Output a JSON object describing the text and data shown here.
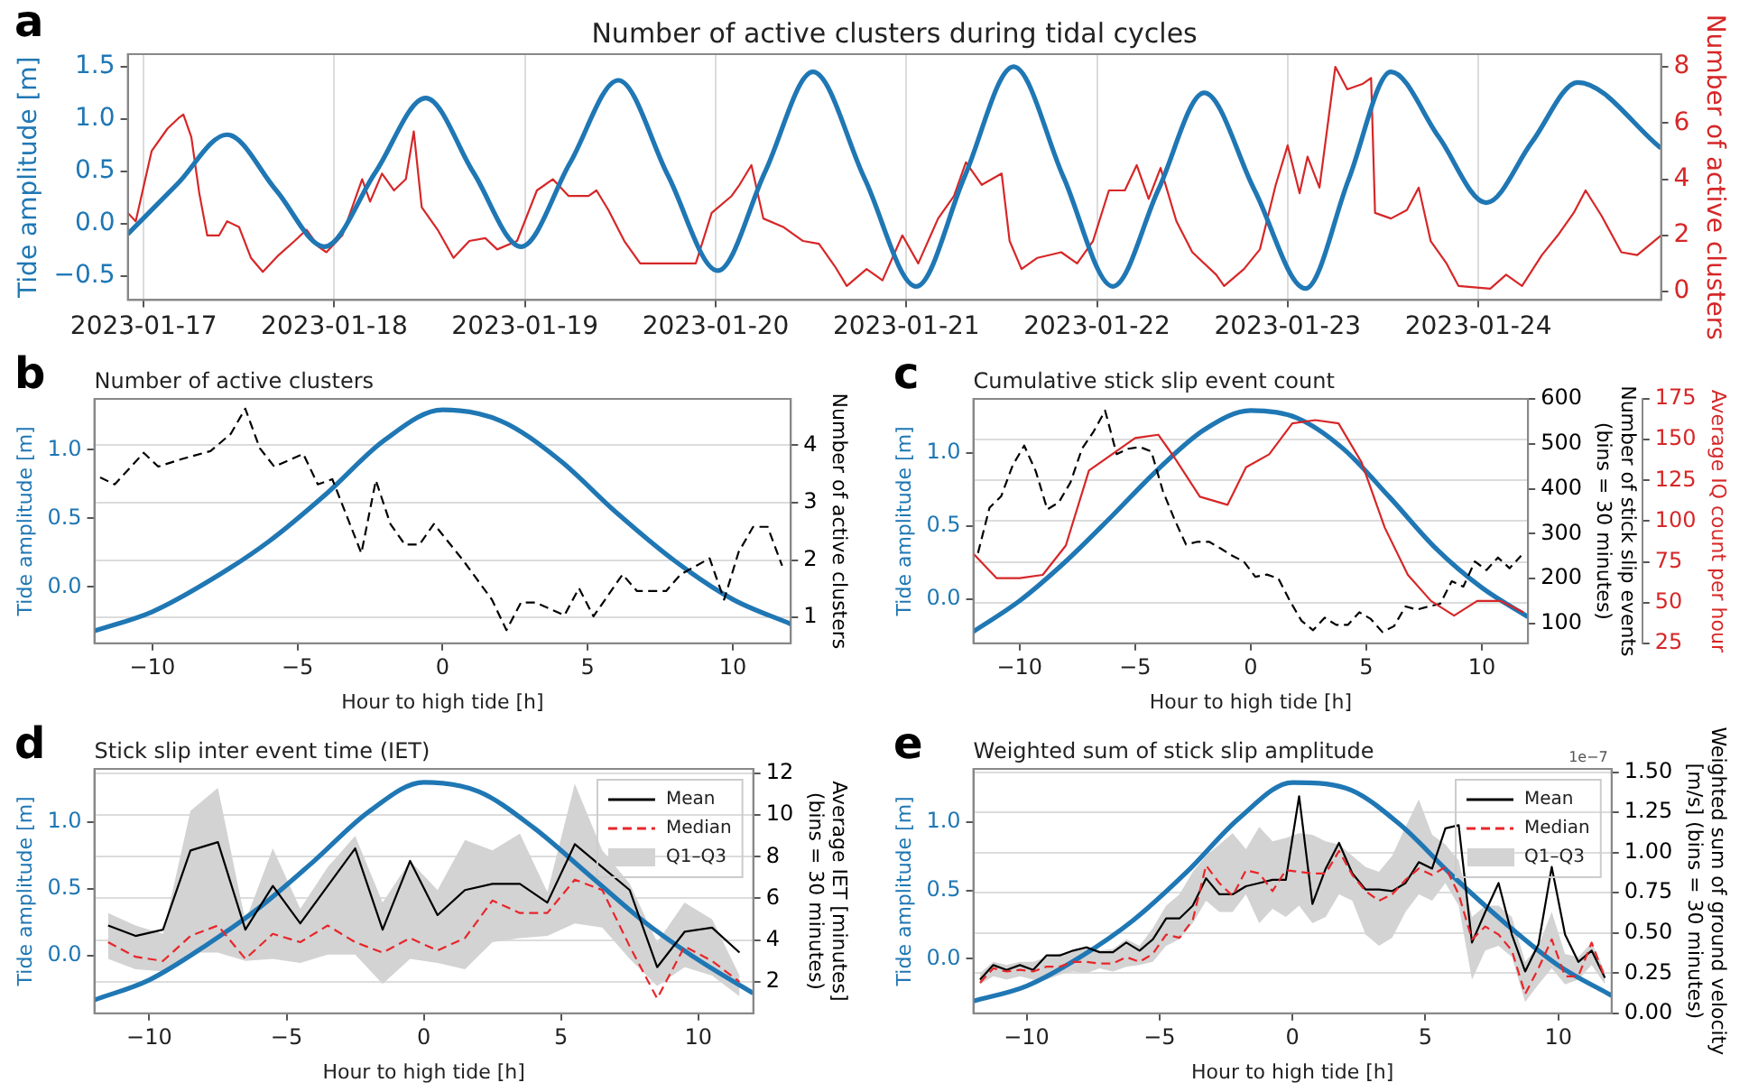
{
  "chart_data": [
    {
      "type": "line",
      "title": "Number of active clusters during tidal cycles",
      "ylabel": "Tide amplitude [m]",
      "y2label": "Number of active clusters",
      "annotations": [
        "a"
      ],
      "grid": "x",
      "xlim": [
        "2023-01-16T22:00",
        "2023-01-24T23:00"
      ],
      "xticks": [
        "2023-01-17",
        "2023-01-18",
        "2023-01-19",
        "2023-01-20",
        "2023-01-21",
        "2023-01-22",
        "2023-01-23",
        "2023-01-24"
      ],
      "ylim": [
        -0.73,
        1.62
      ],
      "yticks": [
        {
          "value": -0.5,
          "label": "−0.5"
        },
        {
          "value": 0,
          "label": "0.0"
        },
        {
          "value": 0.5,
          "label": "0.5"
        },
        {
          "value": 1,
          "label": "1.0"
        },
        {
          "value": 1.5,
          "label": "1.5"
        }
      ],
      "y2lim": [
        -0.3,
        8.45
      ],
      "y2ticks": [
        0,
        2,
        4,
        6,
        8
      ],
      "series": [
        {
          "color": "#d62728",
          "axis": "y2",
          "x": [
            "2023-01-16T22:00",
            "2023-01-16T23:00",
            "2023-01-17T01:00",
            "2023-01-17T03:00",
            "2023-01-17T04:30",
            "2023-01-17T05:00",
            "2023-01-17T06:00",
            "2023-01-17T07:00",
            "2023-01-17T08:00",
            "2023-01-17T09:30",
            "2023-01-17T10:30",
            "2023-01-17T12:00",
            "2023-01-17T13:30",
            "2023-01-17T15:00",
            "2023-01-17T17:00",
            "2023-01-17T19:00",
            "2023-01-17T20:30",
            "2023-01-17T22:00",
            "2023-01-17T23:00",
            "2023-01-18T01:00",
            "2023-01-18T03:30",
            "2023-01-18T04:30",
            "2023-01-18T06:00",
            "2023-01-18T07:30",
            "2023-01-18T09:00",
            "2023-01-18T10:00",
            "2023-01-18T11:00",
            "2023-01-18T13:00",
            "2023-01-18T15:00",
            "2023-01-18T17:00",
            "2023-01-18T19:00",
            "2023-01-18T20:30",
            "2023-01-18T23:00",
            "2023-01-19T01:30",
            "2023-01-19T03:30",
            "2023-01-19T05:30",
            "2023-01-19T08:00",
            "2023-01-19T09:00",
            "2023-01-19T10:30",
            "2023-01-19T12:30",
            "2023-01-19T14:30",
            "2023-01-19T19:00",
            "2023-01-19T21:30",
            "2023-01-19T23:30",
            "2023-01-20T02:00",
            "2023-01-20T03:00",
            "2023-01-20T04:30",
            "2023-01-20T06:00",
            "2023-01-20T08:30",
            "2023-01-20T11:00",
            "2023-01-20T13:00",
            "2023-01-20T15:00",
            "2023-01-20T16:30",
            "2023-01-20T19:00",
            "2023-01-20T21:00",
            "2023-01-20T23:30",
            "2023-01-21T01:30",
            "2023-01-21T04:00",
            "2023-01-21T06:00",
            "2023-01-21T07:30",
            "2023-01-21T09:30",
            "2023-01-21T12:00",
            "2023-01-21T13:00",
            "2023-01-21T14:30",
            "2023-01-21T16:30",
            "2023-01-21T19:30",
            "2023-01-21T21:30",
            "2023-01-21T23:30",
            "2023-01-22T01:30",
            "2023-01-22T03:30",
            "2023-01-22T05:00",
            "2023-01-22T06:30",
            "2023-01-22T08:00",
            "2023-01-22T10:00",
            "2023-01-22T12:00",
            "2023-01-22T15:00",
            "2023-01-22T16:00",
            "2023-01-22T18:30",
            "2023-01-22T20:30",
            "2023-01-22T22:30",
            "2023-01-23T00:00",
            "2023-01-23T01:30",
            "2023-01-23T02:30",
            "2023-01-23T04:00",
            "2023-01-23T06:00",
            "2023-01-23T07:30",
            "2023-01-23T09:30",
            "2023-01-23T10:30",
            "2023-01-23T11:00",
            "2023-01-23T13:00",
            "2023-01-23T15:00",
            "2023-01-23T16:30",
            "2023-01-23T18:00",
            "2023-01-23T20:00",
            "2023-01-23T21:30",
            "2023-01-24T01:30",
            "2023-01-24T03:30",
            "2023-01-24T05:30",
            "2023-01-24T08:00",
            "2023-01-24T10:00",
            "2023-01-24T12:00",
            "2023-01-24T13:30",
            "2023-01-24T15:30",
            "2023-01-24T18:00",
            "2023-01-24T20:00",
            "2023-01-24T23:00"
          ],
          "values": [
            2.8,
            2.5,
            5.0,
            5.8,
            6.2,
            6.3,
            5.5,
            3.5,
            2.0,
            2.0,
            2.5,
            2.3,
            1.2,
            0.7,
            1.3,
            1.8,
            2.2,
            1.6,
            1.4,
            2.0,
            4.0,
            3.2,
            4.2,
            3.6,
            4.0,
            5.7,
            3.0,
            2.2,
            1.2,
            1.8,
            1.9,
            1.5,
            1.8,
            3.6,
            4.0,
            3.4,
            3.4,
            3.6,
            2.9,
            1.8,
            1.0,
            1.0,
            1.0,
            2.8,
            3.4,
            3.8,
            4.5,
            2.6,
            2.3,
            1.8,
            1.7,
            0.9,
            0.2,
            0.8,
            0.4,
            2.0,
            1.0,
            2.6,
            3.4,
            4.6,
            3.8,
            4.2,
            1.8,
            0.8,
            1.2,
            1.4,
            1.0,
            1.8,
            3.6,
            3.6,
            4.5,
            3.3,
            4.4,
            2.5,
            1.4,
            0.6,
            0.2,
            0.8,
            1.5,
            3.8,
            5.2,
            3.5,
            4.8,
            3.7,
            8.0,
            7.2,
            7.4,
            7.6,
            2.8,
            2.6,
            2.9,
            3.7,
            1.8,
            1.0,
            0.2,
            0.1,
            0.6,
            0.2,
            1.3,
            2.0,
            2.8,
            3.6,
            2.7,
            1.4,
            1.3,
            2.0
          ]
        },
        {
          "color": "#1f77b4",
          "x": [
            "2023-01-16T22:00",
            "2023-01-17T04:15",
            "2023-01-17T10:30",
            "2023-01-17T16:40",
            "2023-01-17T22:45",
            "2023-01-18T05:10",
            "2023-01-18T11:30",
            "2023-01-18T17:30",
            "2023-01-18T23:30",
            "2023-01-19T05:40",
            "2023-01-19T11:45",
            "2023-01-19T18:00",
            "2023-01-20T00:15",
            "2023-01-20T06:15",
            "2023-01-20T12:15",
            "2023-01-20T18:45",
            "2023-01-21T01:15",
            "2023-01-21T07:20",
            "2023-01-21T13:30",
            "2023-01-21T19:45",
            "2023-01-22T02:00",
            "2023-01-22T07:45",
            "2023-01-22T13:30",
            "2023-01-22T19:50",
            "2023-01-23T02:15",
            "2023-01-23T07:40",
            "2023-01-23T13:00",
            "2023-01-23T19:00",
            "2023-01-24T01:00",
            "2023-01-24T06:45",
            "2023-01-24T12:30",
            "2023-01-24T23:00"
          ],
          "values": [
            -0.1,
            0.38,
            0.85,
            0.32,
            -0.22,
            0.49,
            1.2,
            0.49,
            -0.22,
            0.58,
            1.37,
            0.46,
            -0.45,
            0.5,
            1.45,
            0.43,
            -0.6,
            0.45,
            1.5,
            0.45,
            -0.6,
            0.33,
            1.25,
            0.32,
            -0.62,
            0.42,
            1.45,
            0.83,
            0.2,
            0.78,
            1.35,
            0.72
          ]
        }
      ]
    },
    {
      "type": "line",
      "title": "Number of active clusters",
      "xlabel": "Hour to high tide [h]",
      "ylabel": "Tide amplitude [m]",
      "y2label": "Number of active clusters",
      "annotations": [
        "b"
      ],
      "grid": "y2",
      "xlim": [
        -12,
        12
      ],
      "xticks": [
        -10,
        -5,
        0,
        5,
        10
      ],
      "ylim": [
        -0.41,
        1.37
      ],
      "yticks": [
        {
          "value": 0,
          "label": "0.0"
        },
        {
          "value": 0.5,
          "label": "0.5"
        },
        {
          "value": 1,
          "label": "1.0"
        }
      ],
      "y2lim": [
        0.55,
        4.81
      ],
      "y2ticks": [
        1,
        2,
        3,
        4
      ],
      "series": [
        {
          "color": "#1f77b4",
          "x": [
            -12,
            -10,
            -8,
            -6,
            -4,
            -2,
            0,
            2,
            4,
            6,
            8,
            10,
            12
          ],
          "values": [
            -0.32,
            -0.18,
            0.05,
            0.33,
            0.68,
            1.07,
            1.29,
            1.21,
            0.93,
            0.54,
            0.19,
            -0.09,
            -0.27
          ]
        },
        {
          "color": "#000000",
          "axis": "y2",
          "line_style": "dashed",
          "x": [
            -11.8,
            -11.3,
            -10.3,
            -9.8,
            -9,
            -8,
            -7.3,
            -6.8,
            -6.3,
            -5.8,
            -4.8,
            -4.3,
            -3.8,
            -2.8,
            -2.3,
            -1.8,
            -1.3,
            -0.8,
            -0.3,
            0.7,
            1.7,
            2.2,
            2.7,
            3.2,
            4.2,
            4.7,
            5.2,
            6.2,
            6.7,
            7.7,
            8.2,
            9.2,
            9.7,
            10.2,
            10.7,
            11.2,
            11.7
          ],
          "values": [
            3.44,
            3.32,
            3.87,
            3.63,
            3.76,
            3.9,
            4.2,
            4.64,
            3.95,
            3.63,
            3.85,
            3.32,
            3.41,
            2.12,
            3.39,
            2.63,
            2.27,
            2.27,
            2.63,
            2.0,
            1.31,
            0.78,
            1.26,
            1.26,
            1.04,
            1.51,
            1.02,
            1.75,
            1.46,
            1.46,
            1.75,
            2.03,
            1.31,
            2.14,
            2.58,
            2.58,
            1.9
          ]
        }
      ]
    },
    {
      "type": "line",
      "title": "Cumulative stick slip event count",
      "xlabel": "Hour to high tide [h]",
      "ylabel": "Tide amplitude [m]",
      "y2label": "Number of stick slip events\n(bins = 30 minutes)",
      "y3label": "Average IQ count per hour",
      "annotations": [
        "c"
      ],
      "grid": "y3",
      "xlim": [
        -12,
        12
      ],
      "xticks": [
        -10,
        -5,
        0,
        5,
        10
      ],
      "ylim": [
        -0.3,
        1.37
      ],
      "yticks": [
        {
          "value": 0,
          "label": "0.0"
        },
        {
          "value": 0.5,
          "label": "0.5"
        },
        {
          "value": 1,
          "label": "1.0"
        }
      ],
      "y2lim": [
        56,
        600
      ],
      "y2ticks": [
        100,
        200,
        300,
        400,
        500,
        600
      ],
      "y3lim": [
        25,
        175
      ],
      "y3ticks": [
        25,
        50,
        75,
        100,
        125,
        150,
        175
      ],
      "series": [
        {
          "color": "#1f77b4",
          "x": [
            -12,
            -10,
            -8,
            -6,
            -4,
            -2,
            0,
            2,
            4,
            6,
            8,
            10,
            12
          ],
          "values": [
            -0.22,
            -0.01,
            0.26,
            0.57,
            0.89,
            1.16,
            1.29,
            1.24,
            1.03,
            0.7,
            0.35,
            0.08,
            -0.12
          ]
        },
        {
          "color": "#000000",
          "axis": "y2",
          "line_style": "dashed",
          "x": [
            -11.8,
            -11.3,
            -10.8,
            -10.3,
            -9.8,
            -9.3,
            -8.8,
            -8.3,
            -7.8,
            -7.3,
            -6.8,
            -6.3,
            -5.8,
            -5.3,
            -4.8,
            -4.3,
            -3.8,
            -3.3,
            -2.8,
            -2.3,
            -1.8,
            -1.3,
            -0.8,
            -0.3,
            0.2,
            0.7,
            1.2,
            1.7,
            2.2,
            2.7,
            3.2,
            3.7,
            4.2,
            4.7,
            5.2,
            5.7,
            6.2,
            6.7,
            7.2,
            7.7,
            8.2,
            8.7,
            9.2,
            9.7,
            10.2,
            10.7,
            11.2,
            11.7
          ],
          "values": [
            257,
            358,
            383,
            452,
            496,
            439,
            354,
            370,
            414,
            489,
            527,
            574,
            477,
            489,
            493,
            483,
            395,
            332,
            276,
            282,
            282,
            267,
            251,
            238,
            204,
            209,
            200,
            150,
            106,
            85,
            113,
            97,
            97,
            125,
            110,
            81,
            94,
            138,
            131,
            138,
            144,
            194,
            182,
            238,
            219,
            247,
            223,
            251
          ]
        },
        {
          "color": "#d62728",
          "axis": "y3",
          "x": [
            -12,
            -11,
            -10,
            -9,
            -8,
            -7,
            -6,
            -5,
            -4,
            -3.3,
            -2.2,
            -1,
            -0.2,
            0.8,
            1.8,
            2.8,
            3.8,
            4.8,
            5.8,
            6.8,
            7.8,
            8.8,
            9.8,
            10.8,
            11.8
          ],
          "values": [
            80,
            65,
            65,
            67,
            85,
            131,
            141,
            151,
            153,
            139,
            115,
            110,
            133,
            141,
            160,
            162,
            160,
            136,
            96,
            67,
            51,
            42,
            51,
            51,
            44
          ]
        }
      ]
    },
    {
      "type": "line",
      "title": "Stick slip inter event time (IET)",
      "xlabel": "Hour to high tide [h]",
      "ylabel": "Tide amplitude [m]",
      "y2label": "Average IET [minutes]\n(bins = 30 minutes)",
      "annotations": [
        "d",
        "Q1–Q3"
      ],
      "grid": "y2",
      "legend": "top right",
      "xlim": [
        -12,
        12
      ],
      "xticks": [
        -10,
        -5,
        0,
        5,
        10
      ],
      "ylim": [
        -0.43,
        1.4
      ],
      "yticks": [
        {
          "value": 0,
          "label": "0.0"
        },
        {
          "value": 0.5,
          "label": "0.5"
        },
        {
          "value": 1,
          "label": "1.0"
        }
      ],
      "y2lim": [
        0.49,
        12.21
      ],
      "y2ticks": [
        2,
        4,
        6,
        8,
        10,
        12
      ],
      "series": [
        {
          "color": "#1f77b4",
          "x": [
            -12,
            -10,
            -8,
            -6,
            -4,
            -2,
            0,
            2,
            4,
            6,
            8,
            10,
            12
          ],
          "values": [
            -0.33,
            -0.18,
            0.07,
            0.36,
            0.71,
            1.08,
            1.3,
            1.23,
            0.96,
            0.61,
            0.26,
            -0.03,
            -0.28
          ]
        },
        {
          "name": "Mean",
          "color": "#000000",
          "axis": "y2",
          "x": [
            -11.5,
            -10.5,
            -9.5,
            -8.5,
            -7.5,
            -6.5,
            -5.5,
            -4.5,
            -3.5,
            -2.5,
            -1.5,
            -0.5,
            0.5,
            1.5,
            2.5,
            3.5,
            4.5,
            5.5,
            6.5,
            7.5,
            8.5,
            9.5,
            10.5,
            11.5
          ],
          "values": [
            4.7,
            4.2,
            4.5,
            8.3,
            8.7,
            4.5,
            6.6,
            4.8,
            6.6,
            8.4,
            4.5,
            7.8,
            5.2,
            6.4,
            6.7,
            6.7,
            5.8,
            8.6,
            7.5,
            6.4,
            2.7,
            4.4,
            4.6,
            3.4
          ]
        },
        {
          "name": "Median",
          "color": "#e8262a",
          "axis": "y2",
          "line_style": "dashed",
          "x": [
            -11.5,
            -10.5,
            -9.5,
            -8.5,
            -7.5,
            -6.5,
            -5.5,
            -4.5,
            -3.5,
            -2.5,
            -1.5,
            -0.5,
            0.5,
            1.5,
            2.5,
            3.5,
            4.5,
            5.5,
            6.5,
            7.5,
            8.5,
            9.5,
            10.5,
            11.5
          ],
          "values": [
            3.9,
            3.2,
            3.0,
            4.2,
            4.7,
            3.1,
            4.3,
            3.9,
            4.7,
            3.9,
            3.4,
            4.1,
            3.5,
            4.1,
            5.9,
            5.3,
            5.3,
            6.9,
            6.4,
            3.7,
            1.2,
            3.7,
            3.0,
            2.0
          ],
          "lower": [
            3.1,
            2.6,
            2.5,
            3.4,
            3.4,
            3.0,
            3.1,
            2.9,
            3.3,
            3.3,
            1.9,
            3.1,
            2.9,
            2.6,
            3.9,
            4.1,
            4.2,
            4.8,
            4.6,
            3.1,
            1.8,
            2.7,
            2.3,
            1.3
          ],
          "upper": [
            5.3,
            4.7,
            4.3,
            10.2,
            11.3,
            4.9,
            8.4,
            5.5,
            7.5,
            9.0,
            5.8,
            7.8,
            6.4,
            8.8,
            8.3,
            9.1,
            6.3,
            11.5,
            8.3,
            6.7,
            3.9,
            5.8,
            5.0,
            2.3
          ]
        }
      ]
    },
    {
      "type": "line",
      "title": "Weighted sum of stick slip amplitude",
      "xlabel": "Hour to high tide [h]",
      "ylabel": "Tide amplitude [m]",
      "y2label": "Weighted sum of ground velocity\n[m/s] (bins = 30 minutes)",
      "annotations": [
        "e",
        "1e−7",
        "Q1–Q3"
      ],
      "grid": "y2",
      "legend": "top right",
      "xlim": [
        -12,
        12
      ],
      "xticks": [
        -10,
        -5,
        0,
        5,
        10
      ],
      "ylim": [
        -0.4,
        1.39
      ],
      "yticks": [
        {
          "value": 0,
          "label": "0.0"
        },
        {
          "value": 0.5,
          "label": "0.5"
        },
        {
          "value": 1,
          "label": "1.0"
        }
      ],
      "y2lim": [
        0,
        1.52
      ],
      "y2ticks": [
        {
          "value": 0,
          "label": "0.00"
        },
        0.25,
        {
          "value": 0.5,
          "label": "0.50"
        },
        0.75,
        {
          "value": 1,
          "label": "1.00"
        },
        1.25,
        {
          "value": 1.5,
          "label": "1.50"
        }
      ],
      "series": [
        {
          "color": "#1f77b4",
          "x": [
            -12,
            -10,
            -8,
            -6,
            -4,
            -2,
            0,
            2,
            4,
            6,
            8,
            10,
            12
          ],
          "values": [
            -0.31,
            -0.2,
            0.01,
            0.28,
            0.63,
            1.03,
            1.29,
            1.25,
            0.99,
            0.61,
            0.26,
            -0.05,
            -0.27
          ]
        },
        {
          "name": "Mean",
          "color": "#000000",
          "axis": "y2",
          "x": [
            -11.75,
            -11.25,
            -10.75,
            -10.25,
            -9.75,
            -9.25,
            -8.75,
            -8.25,
            -7.75,
            -7.25,
            -6.75,
            -6.25,
            -5.75,
            -5.25,
            -4.75,
            -4.25,
            -3.75,
            -3.25,
            -2.75,
            -2.25,
            -1.75,
            -1.25,
            -0.75,
            -0.25,
            0.25,
            0.75,
            1.25,
            1.75,
            2.25,
            2.75,
            3.25,
            3.75,
            4.25,
            4.75,
            5.25,
            5.75,
            6.25,
            6.75,
            7.25,
            7.75,
            8.25,
            8.75,
            9.25,
            9.75,
            10.25,
            10.75,
            11.25,
            11.75
          ],
          "values": [
            0.21,
            0.3,
            0.27,
            0.3,
            0.27,
            0.36,
            0.36,
            0.39,
            0.41,
            0.38,
            0.38,
            0.44,
            0.39,
            0.46,
            0.59,
            0.59,
            0.67,
            0.84,
            0.74,
            0.74,
            0.79,
            0.81,
            0.83,
            0.83,
            1.35,
            0.68,
            0.9,
            1.06,
            0.87,
            0.77,
            0.77,
            0.76,
            0.81,
            0.94,
            0.9,
            1.15,
            1.17,
            0.44,
            0.63,
            0.81,
            0.49,
            0.26,
            0.43,
            0.91,
            0.49,
            0.32,
            0.39,
            0.22
          ]
        },
        {
          "name": "Median",
          "color": "#e8262a",
          "axis": "y2",
          "line_style": "dashed",
          "x": [
            -11.75,
            -11.25,
            -10.75,
            -10.25,
            -9.75,
            -9.25,
            -8.75,
            -8.25,
            -7.75,
            -7.25,
            -6.75,
            -6.25,
            -5.75,
            -5.25,
            -4.75,
            -4.25,
            -3.75,
            -3.25,
            -2.75,
            -2.25,
            -1.75,
            -1.25,
            -0.75,
            -0.25,
            0.25,
            0.75,
            1.25,
            1.75,
            2.25,
            2.75,
            3.25,
            3.75,
            4.25,
            4.75,
            5.25,
            5.75,
            6.25,
            6.75,
            7.25,
            7.75,
            8.25,
            8.75,
            9.25,
            9.75,
            10.25,
            10.75,
            11.25,
            11.75
          ],
          "values": [
            0.19,
            0.28,
            0.26,
            0.27,
            0.26,
            0.29,
            0.29,
            0.32,
            0.32,
            0.31,
            0.31,
            0.35,
            0.32,
            0.37,
            0.49,
            0.47,
            0.58,
            0.92,
            0.81,
            0.73,
            0.89,
            0.87,
            0.76,
            0.89,
            0.88,
            0.87,
            0.87,
            1.01,
            0.86,
            0.76,
            0.7,
            0.74,
            0.83,
            0.9,
            0.86,
            0.91,
            0.74,
            0.46,
            0.54,
            0.49,
            0.39,
            0.12,
            0.28,
            0.46,
            0.23,
            0.23,
            0.44,
            0.22
          ],
          "lower": [
            0.18,
            0.23,
            0.21,
            0.23,
            0.21,
            0.21,
            0.24,
            0.26,
            0.25,
            0.28,
            0.26,
            0.29,
            0.3,
            0.32,
            0.42,
            0.46,
            0.56,
            0.7,
            0.63,
            0.63,
            0.74,
            0.56,
            0.65,
            0.6,
            0.67,
            0.56,
            0.6,
            0.74,
            0.7,
            0.49,
            0.42,
            0.47,
            0.63,
            0.74,
            0.7,
            0.81,
            0.67,
            0.21,
            0.39,
            0.42,
            0.35,
            0.07,
            0.18,
            0.28,
            0.18,
            0.21,
            0.3,
            0.18
          ],
          "upper": [
            0.25,
            0.32,
            0.3,
            0.32,
            0.32,
            0.35,
            0.37,
            0.39,
            0.42,
            0.39,
            0.4,
            0.46,
            0.42,
            0.53,
            0.67,
            0.74,
            0.88,
            0.98,
            1.05,
            1.12,
            1.02,
            1.16,
            1.07,
            1.09,
            1.12,
            1.11,
            1.07,
            1.05,
            0.98,
            0.91,
            0.88,
            0.98,
            1.16,
            1.33,
            1.11,
            1.05,
            0.95,
            0.6,
            0.67,
            0.67,
            0.6,
            0.32,
            0.42,
            0.63,
            0.37,
            0.35,
            0.44,
            0.26
          ]
        }
      ]
    }
  ]
}
